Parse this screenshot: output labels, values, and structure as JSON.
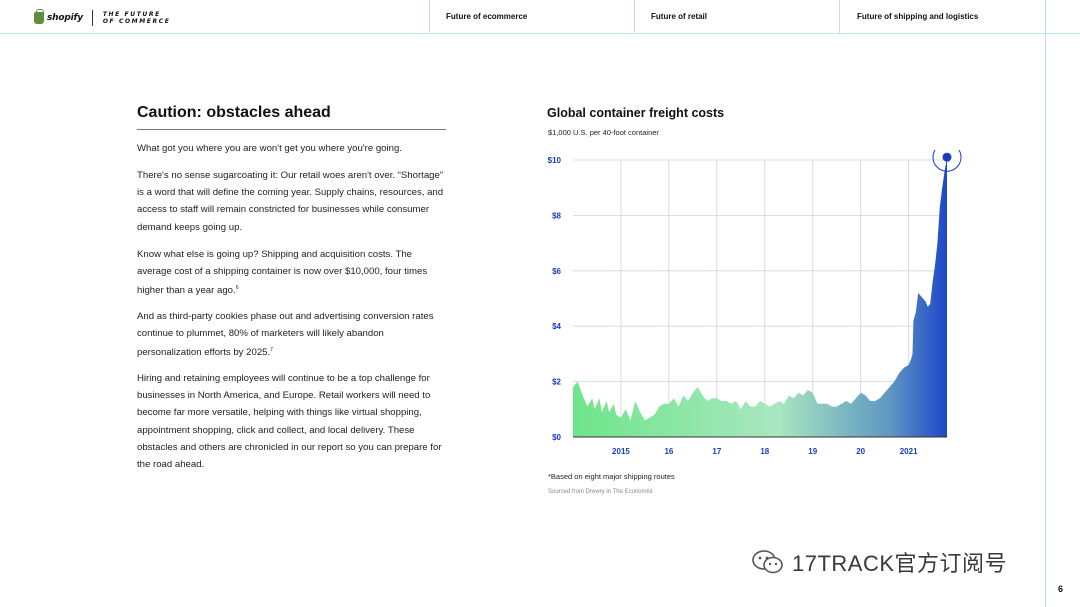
{
  "header": {
    "brand_name": "shopify",
    "tagline_line1": "THE FUTURE",
    "tagline_line2": "OF COMMERCE",
    "nav": [
      {
        "label": "Future of ecommerce"
      },
      {
        "label": "Future of retail"
      },
      {
        "label": "Future of shipping and logistics"
      }
    ]
  },
  "article": {
    "title": "Caution: obstacles ahead",
    "p1": "What got you where you are won't get you where you're going.",
    "p2": "There's no sense sugarcoating it: Our retail woes aren't over. “Shortage” is a word that will define the coming year. Supply chains, resources, and access to staff will remain constricted for businesses while consumer demand keeps going up.",
    "p3": "Know what else is going up? Shipping and acquisition costs. The average cost of a shipping container is now over $10,000, four times higher than a year ago.",
    "p3_note": "6",
    "p4": "And as third-party cookies phase out and advertising conversion rates continue to plummet, 80% of marketers will likely abandon personalization efforts by 2025.",
    "p4_note": "7",
    "p5": "Hiring and retaining employees will continue to be a top challenge for businesses in North America, and Europe. Retail workers will need to become far more versatile, helping with things like virtual shopping, appointment shopping, click and collect, and local delivery. These obstacles and others are chronicled in our report so you can prepare for the road ahead."
  },
  "chart_data": {
    "type": "area",
    "title": "Global container freight costs",
    "subtitle": "$1,000 U.S. per 40-foot container",
    "y_tick_labels": [
      "$0",
      "$2",
      "$4",
      "$6",
      "$8",
      "$10"
    ],
    "y_ticks": [
      0,
      2,
      4,
      6,
      8,
      10
    ],
    "ylim": [
      0,
      10
    ],
    "xlim": [
      2014.0,
      2021.8
    ],
    "x_ticks": [
      {
        "value": 2015,
        "label": "2015"
      },
      {
        "value": 2016,
        "label": "16"
      },
      {
        "value": 2017,
        "label": "17"
      },
      {
        "value": 2018,
        "label": "18"
      },
      {
        "value": 2019,
        "label": "19"
      },
      {
        "value": 2020,
        "label": "20"
      },
      {
        "value": 2021,
        "label": "2021"
      }
    ],
    "grid": true,
    "gradient_colors": [
      "#6ee58a",
      "#a9e6c0",
      "#5e96c2",
      "#1f47c8"
    ],
    "highlight_color": "#1a3cc0",
    "series": [
      {
        "x": [
          2014.0,
          2014.1,
          2014.2,
          2014.3,
          2014.4,
          2014.45,
          2014.55,
          2014.6,
          2014.7,
          2014.75,
          2014.85,
          2014.9,
          2015.0,
          2015.1,
          2015.2,
          2015.3,
          2015.4,
          2015.5,
          2015.6,
          2015.7,
          2015.8,
          2015.9,
          2016.0,
          2016.1,
          2016.2,
          2016.3,
          2016.4,
          2016.5,
          2016.6,
          2016.7,
          2016.8,
          2016.9,
          2017.0,
          2017.1,
          2017.2,
          2017.3,
          2017.4,
          2017.5,
          2017.6,
          2017.7,
          2017.8,
          2017.9,
          2018.0,
          2018.1,
          2018.2,
          2018.3,
          2018.4,
          2018.5,
          2018.6,
          2018.7,
          2018.8,
          2018.9,
          2019.0,
          2019.1,
          2019.2,
          2019.3,
          2019.4,
          2019.5,
          2019.6,
          2019.7,
          2019.8,
          2019.9,
          2020.0,
          2020.1,
          2020.2,
          2020.3,
          2020.4,
          2020.5,
          2020.6,
          2020.7,
          2020.8,
          2020.9,
          2021.0,
          2021.05,
          2021.08,
          2021.1,
          2021.15,
          2021.2,
          2021.25,
          2021.3,
          2021.35,
          2021.4,
          2021.45,
          2021.5,
          2021.55,
          2021.6,
          2021.65,
          2021.7,
          2021.75,
          2021.8
        ],
        "values": [
          1.8,
          2.0,
          1.5,
          1.1,
          1.4,
          1.0,
          1.4,
          0.9,
          1.3,
          0.9,
          1.2,
          0.8,
          0.7,
          1.0,
          0.6,
          1.3,
          0.9,
          0.6,
          0.7,
          0.8,
          1.1,
          1.2,
          1.2,
          1.4,
          1.1,
          1.5,
          1.3,
          1.6,
          1.8,
          1.5,
          1.3,
          1.4,
          1.4,
          1.3,
          1.3,
          1.2,
          1.3,
          1.0,
          1.3,
          1.1,
          1.1,
          1.3,
          1.2,
          1.1,
          1.2,
          1.3,
          1.2,
          1.5,
          1.4,
          1.6,
          1.5,
          1.7,
          1.6,
          1.2,
          1.2,
          1.2,
          1.1,
          1.1,
          1.2,
          1.3,
          1.2,
          1.4,
          1.6,
          1.5,
          1.3,
          1.3,
          1.4,
          1.6,
          1.8,
          2.0,
          2.3,
          2.5,
          2.6,
          2.8,
          3.0,
          4.2,
          4.5,
          5.2,
          5.1,
          5.0,
          4.9,
          4.7,
          4.8,
          5.6,
          6.2,
          7.0,
          8.3,
          9.0,
          9.6,
          10.1
        ]
      }
    ]
  },
  "footnote": "*Based on eight major shipping routes",
  "source": "Sourced from Drewry in The Economist",
  "page_number": "6",
  "watermark_text": "17TRACK官方订阅号"
}
